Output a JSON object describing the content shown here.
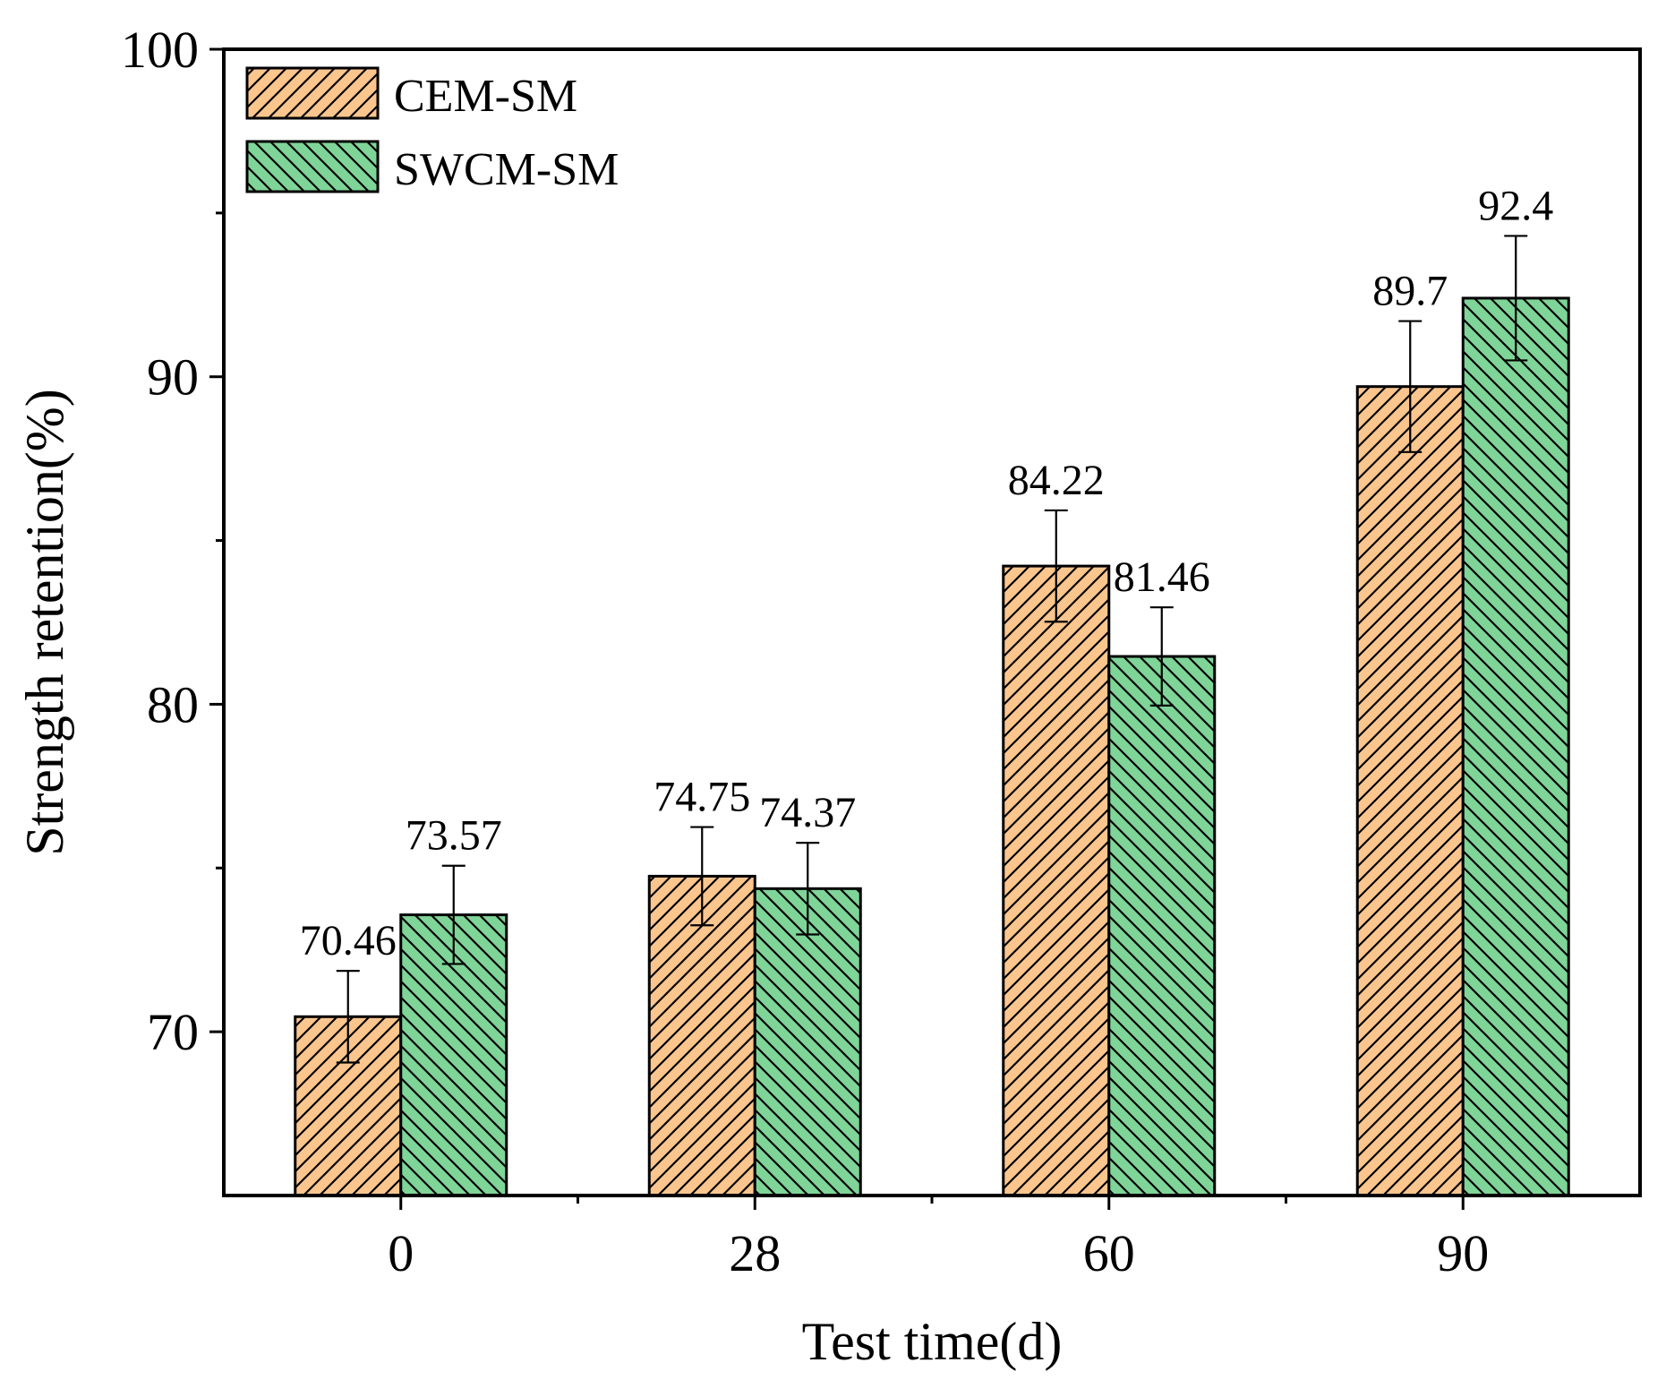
{
  "chart_data": {
    "type": "bar",
    "xlabel": "Test time(d)",
    "ylabel": "Strength retention(%)",
    "categories": [
      "0",
      "28",
      "60",
      "90"
    ],
    "ylim": [
      65,
      100
    ],
    "yticks": [
      70,
      80,
      90,
      100
    ],
    "ytick_labels": [
      "70",
      "80",
      "90",
      "100"
    ],
    "minor_ytick_step": 5,
    "series": [
      {
        "name": "CEM-SM",
        "values": [
          70.46,
          74.75,
          84.22,
          89.7
        ],
        "labels": [
          "70.46",
          "74.75",
          "84.22",
          "89.7"
        ],
        "errors": [
          1.4,
          1.5,
          1.7,
          2.0
        ],
        "color": "#fbc58e",
        "hatch": "forward-diagonal"
      },
      {
        "name": "SWCM-SM",
        "values": [
          73.57,
          74.37,
          81.46,
          92.4
        ],
        "labels": [
          "73.57",
          "74.37",
          "81.46",
          "92.4"
        ],
        "errors": [
          1.5,
          1.4,
          1.5,
          1.9
        ],
        "color": "#7fd498",
        "hatch": "back-diagonal"
      }
    ],
    "legend_position": "top-left",
    "grid": false
  }
}
